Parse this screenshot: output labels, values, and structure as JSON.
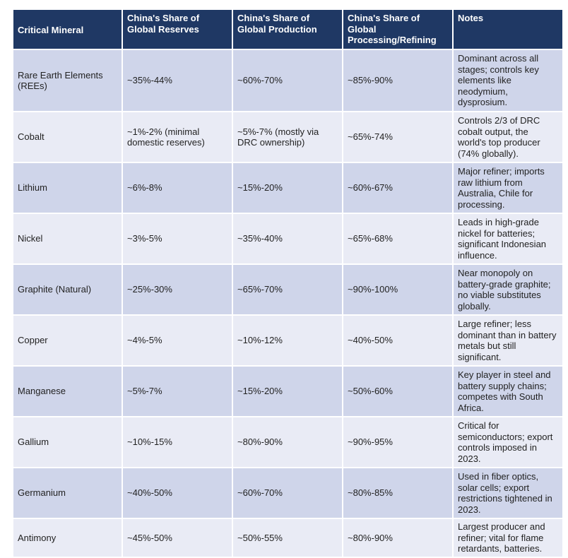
{
  "table": {
    "headers": [
      "Critical Mineral",
      "China's Share of Global Reserves",
      "China's Share of Global Production",
      "China's Share of Global Processing/Refining",
      "Notes"
    ],
    "rows": [
      [
        "Rare Earth Elements (REEs)",
        "~35%-44%",
        "~60%-70%",
        "~85%-90%",
        "Dominant across all stages; controls key elements like neodymium, dysprosium."
      ],
      [
        "Cobalt",
        "~1%-2% (minimal domestic reserves)",
        "~5%-7% (mostly via DRC ownership)",
        "~65%-74%",
        "Controls 2/3 of DRC cobalt output, the world's top producer (74% globally)."
      ],
      [
        "Lithium",
        "~6%-8%",
        "~15%-20%",
        "~60%-67%",
        "Major refiner; imports raw lithium from Australia, Chile for processing."
      ],
      [
        "Nickel",
        "~3%-5%",
        "~35%-40%",
        "~65%-68%",
        "Leads in high-grade nickel for batteries; significant Indonesian influence."
      ],
      [
        "Graphite (Natural)",
        "~25%-30%",
        "~65%-70%",
        "~90%-100%",
        "Near monopoly on battery-grade graphite; no viable substitutes globally."
      ],
      [
        "Copper",
        "~4%-5%",
        "~10%-12%",
        "~40%-50%",
        "Large refiner; less dominant than in battery metals but still significant."
      ],
      [
        "Manganese",
        "~5%-7%",
        "~15%-20%",
        "~50%-60%",
        "Key player in steel and battery supply chains; competes with South Africa."
      ],
      [
        "Gallium",
        "~10%-15%",
        "~80%-90%",
        "~90%-95%",
        "Critical for semiconductors; export controls imposed in 2023."
      ],
      [
        "Germanium",
        "~40%-50%",
        "~60%-70%",
        "~80%-85%",
        "Used in fiber optics, solar cells; export restrictions tightened in 2023."
      ],
      [
        "Antimony",
        "~45%-50%",
        "~50%-55%",
        "~80%-90%",
        "Largest producer and refiner; vital for flame retardants, batteries."
      ]
    ]
  }
}
